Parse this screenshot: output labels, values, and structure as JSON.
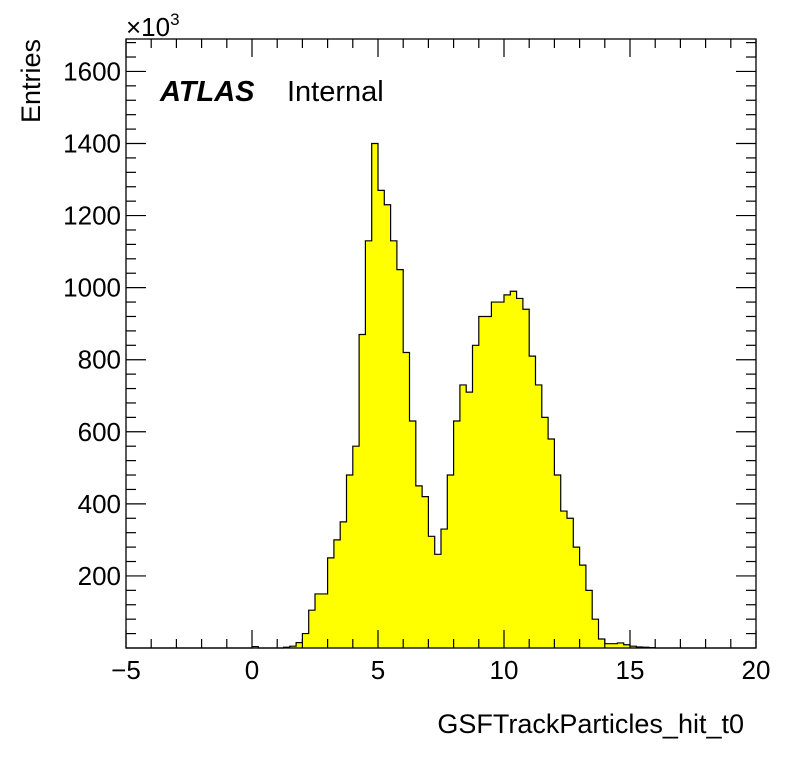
{
  "colors": {
    "fill": "#ffff00",
    "line": "#000000",
    "background": "#ffffff"
  },
  "labels": {
    "atlas": "ATLAS",
    "internal": "Internal",
    "multiplier": "×10",
    "multiplier_exp": "3"
  },
  "chart_data": {
    "type": "bar",
    "style": "histogram-step",
    "title": "",
    "xlabel": "GSFTrackParticles_hit_t0",
    "ylabel": "Entries",
    "y_multiplier": 1000,
    "xlim": [
      -5,
      20
    ],
    "ylim": [
      0,
      1690
    ],
    "bin_width": 0.25,
    "x_ticks": [
      -5,
      0,
      5,
      10,
      15,
      20
    ],
    "x_tick_labels": [
      "−5",
      "0",
      "5",
      "10",
      "15",
      "20"
    ],
    "y_ticks": [
      200,
      400,
      600,
      800,
      1000,
      1200,
      1400,
      1600
    ],
    "y_tick_labels": [
      "200",
      "400",
      "600",
      "800",
      "1000",
      "1200",
      "1400",
      "1600"
    ],
    "grid": false,
    "bin_low_edges": [
      -5,
      -4.75,
      -4.5,
      -4.25,
      -4,
      -3.75,
      -3.5,
      -3.25,
      -3,
      -2.75,
      -2.5,
      -2.25,
      -2,
      -1.75,
      -1.5,
      -1.25,
      -1,
      -0.75,
      -0.5,
      -0.25,
      0,
      0.25,
      0.5,
      0.75,
      1,
      1.25,
      1.5,
      1.75,
      2,
      2.25,
      2.5,
      2.75,
      3,
      3.25,
      3.5,
      3.75,
      4,
      4.25,
      4.5,
      4.75,
      5,
      5.25,
      5.5,
      5.75,
      6,
      6.25,
      6.5,
      6.75,
      7,
      7.25,
      7.5,
      7.75,
      8,
      8.25,
      8.5,
      8.75,
      9,
      9.25,
      9.5,
      9.75,
      10,
      10.25,
      10.5,
      10.75,
      11,
      11.25,
      11.5,
      11.75,
      12,
      12.25,
      12.5,
      12.75,
      13,
      13.25,
      13.5,
      13.75,
      14,
      14.25,
      14.5,
      14.75,
      15,
      15.25,
      15.5,
      15.75,
      16,
      16.25,
      16.5,
      16.75,
      17,
      17.25,
      17.5,
      17.75,
      18,
      18.25,
      18.5,
      18.75,
      19,
      19.25,
      19.5,
      19.75
    ],
    "values": [
      0,
      0,
      0,
      0,
      0,
      0,
      0,
      0,
      0,
      0,
      0,
      0,
      0,
      0,
      0,
      0,
      0,
      0,
      0,
      0,
      4,
      0,
      0,
      0,
      0,
      2,
      5,
      15,
      40,
      105,
      150,
      150,
      250,
      300,
      350,
      480,
      560,
      870,
      1130,
      1400,
      1270,
      1230,
      1130,
      1050,
      820,
      630,
      450,
      420,
      310,
      260,
      330,
      480,
      630,
      730,
      710,
      840,
      920,
      920,
      960,
      960,
      980,
      990,
      970,
      940,
      810,
      730,
      640,
      580,
      480,
      380,
      360,
      280,
      230,
      160,
      80,
      25,
      12,
      12,
      14,
      9,
      5,
      3,
      2,
      1,
      0,
      0,
      0,
      0,
      0,
      0,
      0,
      0,
      0,
      0,
      0,
      0,
      0,
      0,
      0,
      0
    ]
  }
}
